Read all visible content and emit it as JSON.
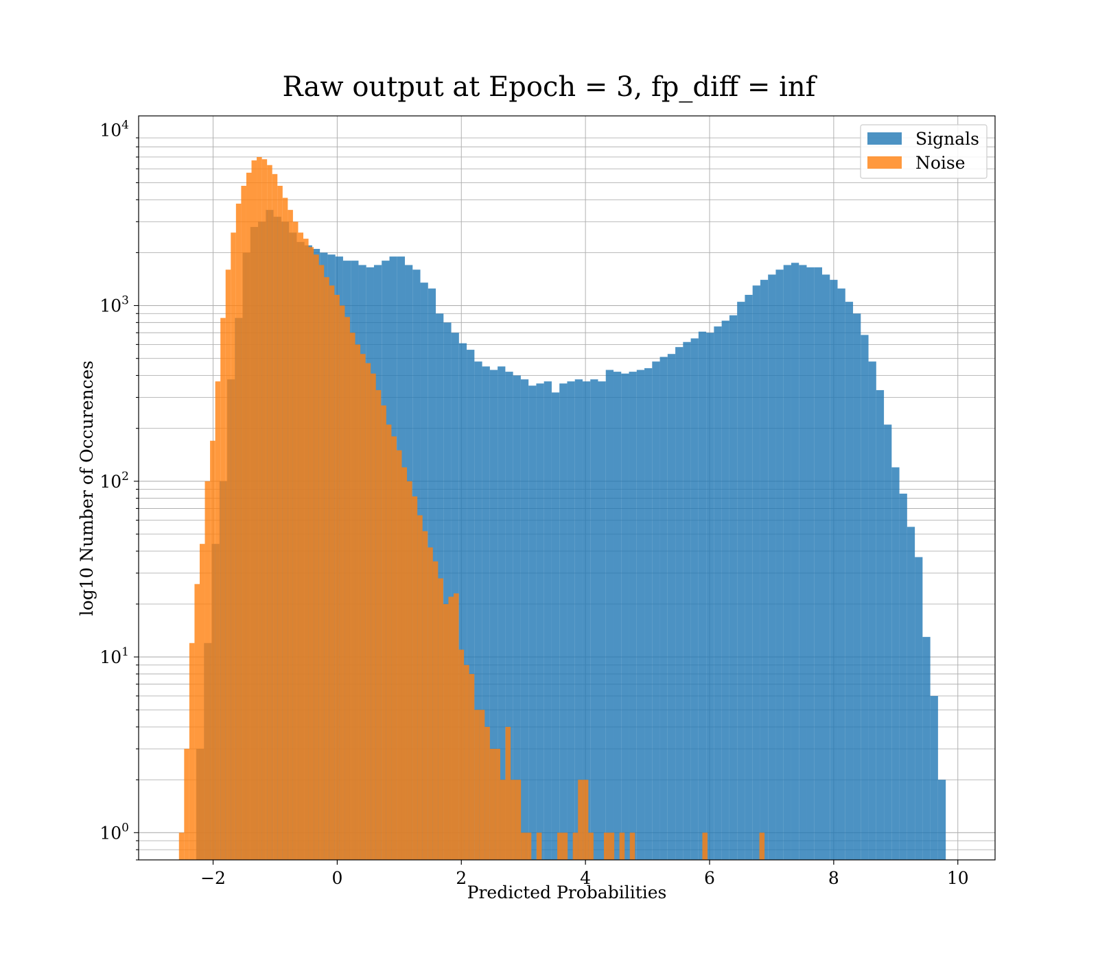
{
  "chart_data": {
    "type": "histogram",
    "title": "Raw output at Epoch = 3, fp_diff = inf",
    "xlabel": "Predicted Probabilities",
    "ylabel": "log10 Number of Occurences",
    "yscale": "log",
    "xlim": [
      -3.2,
      10.6
    ],
    "ylim": [
      0.7,
      12000
    ],
    "xticks": [
      -2,
      0,
      2,
      4,
      6,
      8,
      10
    ],
    "xtick_labels": [
      "−2",
      "0",
      "2",
      "4",
      "6",
      "8",
      "10"
    ],
    "yticks": [
      {
        "value": 1,
        "base": "10",
        "exp": "0"
      },
      {
        "value": 10,
        "base": "10",
        "exp": "1"
      },
      {
        "value": 100,
        "base": "10",
        "exp": "2"
      },
      {
        "value": 1000,
        "base": "10",
        "exp": "3"
      },
      {
        "value": 10000,
        "base": "10",
        "exp": "4"
      }
    ],
    "grid": true,
    "legend_position": "top-right",
    "series": [
      {
        "name": "Signals",
        "color": "#1f77b4",
        "opacity": 0.8,
        "bin_start": -2.52,
        "bin_width": 0.1245,
        "values": [
          0,
          0,
          3,
          12,
          44,
          100,
          380,
          850,
          2000,
          2800,
          3000,
          3500,
          3200,
          3000,
          2600,
          2300,
          2200,
          2100,
          2000,
          1950,
          1900,
          1800,
          1800,
          1700,
          1650,
          1700,
          1800,
          1900,
          1900,
          1700,
          1600,
          1350,
          1250,
          900,
          800,
          700,
          610,
          560,
          480,
          450,
          430,
          450,
          420,
          400,
          380,
          350,
          360,
          370,
          320,
          360,
          370,
          380,
          370,
          380,
          370,
          430,
          420,
          410,
          420,
          430,
          440,
          480,
          510,
          530,
          580,
          620,
          650,
          710,
          700,
          760,
          820,
          880,
          1050,
          1150,
          1300,
          1400,
          1500,
          1600,
          1700,
          1750,
          1700,
          1650,
          1650,
          1500,
          1400,
          1250,
          1050,
          900,
          680,
          480,
          330,
          210,
          120,
          85,
          55,
          37,
          13,
          6,
          2
        ]
      },
      {
        "name": "Noise",
        "color": "#ff7f0e",
        "opacity": 0.8,
        "bin_start": -2.55,
        "bin_width": 0.0835,
        "values": [
          1,
          3,
          12,
          26,
          44,
          100,
          170,
          370,
          850,
          1600,
          2600,
          3800,
          4800,
          5700,
          6700,
          7000,
          6800,
          6300,
          5600,
          4800,
          4100,
          3500,
          3000,
          2600,
          2400,
          2150,
          1950,
          1700,
          1450,
          1300,
          1150,
          1000,
          860,
          700,
          600,
          530,
          470,
          410,
          330,
          270,
          210,
          180,
          150,
          120,
          100,
          82,
          64,
          52,
          42,
          35,
          28,
          20,
          22,
          23,
          11,
          9,
          8,
          5,
          5,
          4,
          3,
          3,
          2,
          4,
          2,
          2,
          1,
          1,
          0,
          1,
          0,
          0,
          0,
          1,
          1,
          0,
          1,
          2,
          2,
          1,
          0,
          0,
          1,
          1,
          0,
          1,
          0,
          1,
          0,
          0,
          0,
          0,
          0,
          0,
          0,
          0,
          0,
          0,
          0,
          0,
          0,
          1,
          0,
          0,
          0,
          0,
          0,
          0,
          0,
          0,
          0,
          0,
          1,
          0
        ]
      }
    ]
  }
}
